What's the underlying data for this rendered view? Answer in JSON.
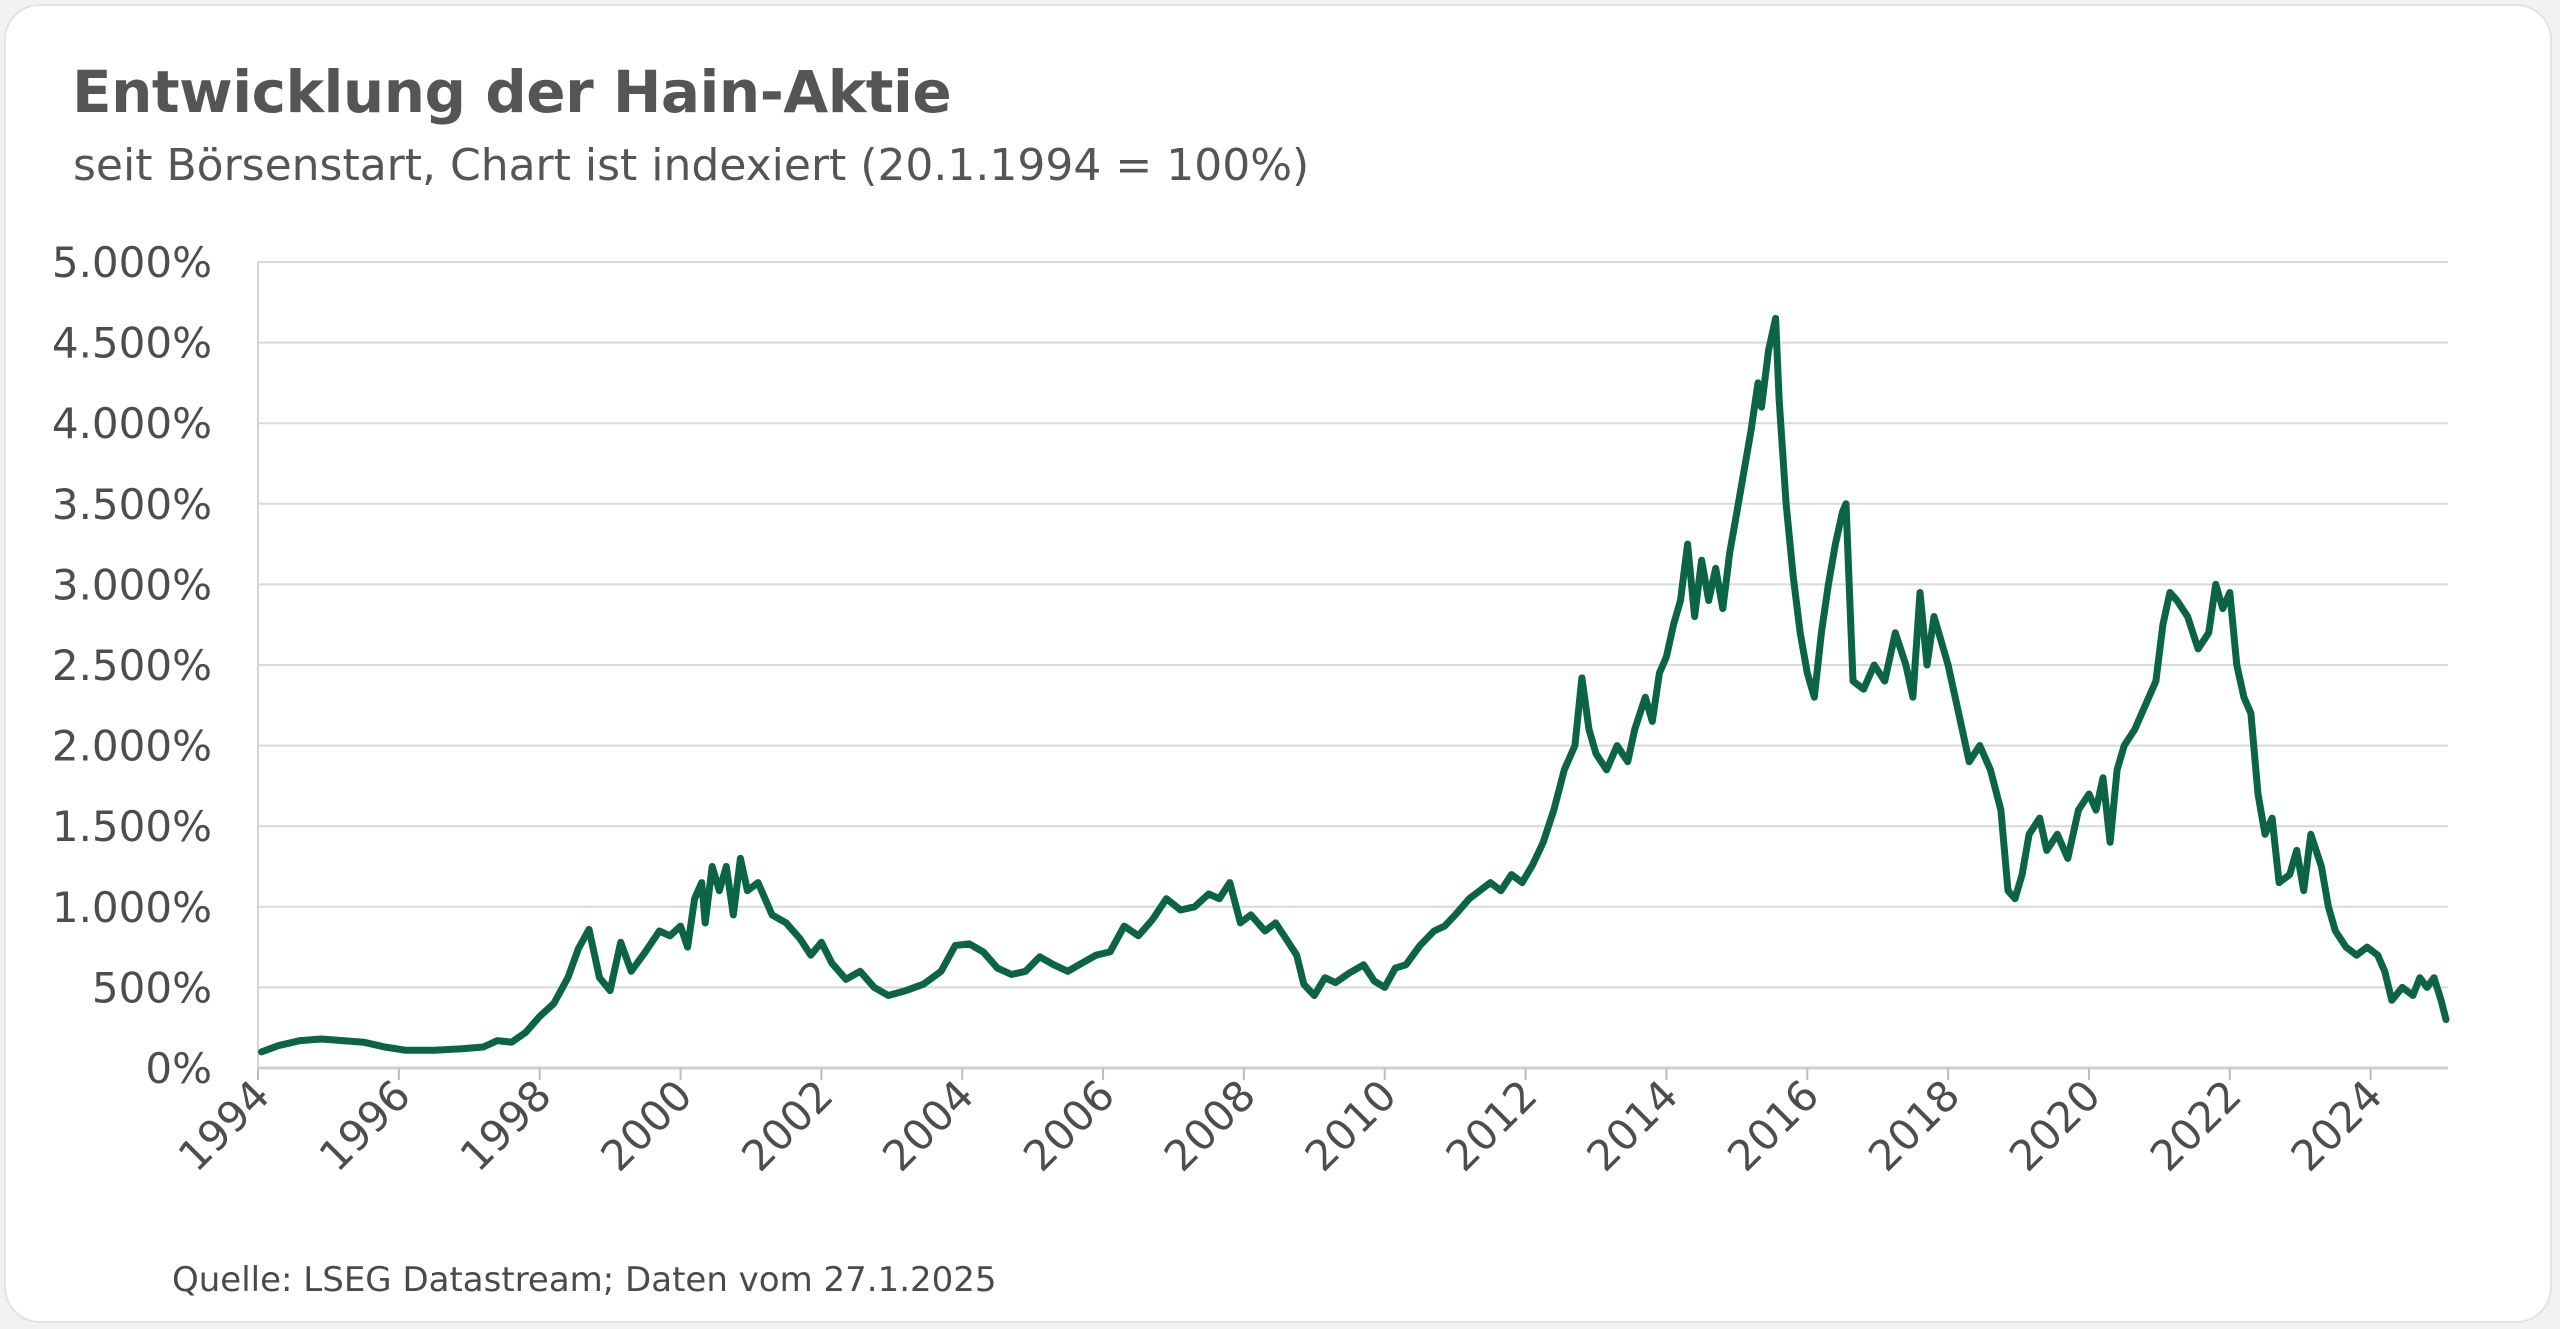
{
  "chart_data": {
    "type": "line",
    "title": "Entwicklung der Hain-Aktie",
    "subtitle": "seit Börsenstart, Chart ist indexiert (20.1.1994 = 100%)",
    "source": "Quelle: LSEG Datastream; Daten vom 27.1.2025",
    "xlabel": "",
    "ylabel": "",
    "xlim": [
      1994.0,
      2025.07
    ],
    "ylim": [
      0,
      5000
    ],
    "y_ticks": [
      0,
      500,
      1000,
      1500,
      2000,
      2500,
      3000,
      3500,
      4000,
      4500,
      5000
    ],
    "y_tick_labels": [
      "0%",
      "500%",
      "1.000%",
      "1.500%",
      "2.000%",
      "2.500%",
      "3.000%",
      "3.500%",
      "4.000%",
      "4.500%",
      "5.000%"
    ],
    "x_ticks": [
      1994,
      1996,
      1998,
      2000,
      2002,
      2004,
      2006,
      2008,
      2010,
      2012,
      2014,
      2016,
      2018,
      2020,
      2022,
      2024
    ],
    "x_tick_labels": [
      "1994",
      "1996",
      "1998",
      "2000",
      "2002",
      "2004",
      "2006",
      "2008",
      "2010",
      "2012",
      "2014",
      "2016",
      "2018",
      "2020",
      "2022",
      "2024"
    ],
    "grid": "horizontal",
    "line_color": "#0b6445",
    "series": [
      {
        "points": [
          [
            1994.05,
            100
          ],
          [
            1994.3,
            140
          ],
          [
            1994.6,
            170
          ],
          [
            1994.9,
            180
          ],
          [
            1995.2,
            170
          ],
          [
            1995.5,
            160
          ],
          [
            1995.8,
            130
          ],
          [
            1996.1,
            110
          ],
          [
            1996.5,
            110
          ],
          [
            1996.9,
            120
          ],
          [
            1997.2,
            130
          ],
          [
            1997.4,
            170
          ],
          [
            1997.6,
            160
          ],
          [
            1997.8,
            220
          ],
          [
            1998.0,
            320
          ],
          [
            1998.2,
            400
          ],
          [
            1998.4,
            560
          ],
          [
            1998.55,
            740
          ],
          [
            1998.7,
            860
          ],
          [
            1998.85,
            560
          ],
          [
            1999.0,
            480
          ],
          [
            1999.15,
            780
          ],
          [
            1999.3,
            600
          ],
          [
            1999.5,
            720
          ],
          [
            1999.7,
            850
          ],
          [
            1999.85,
            820
          ],
          [
            2000.0,
            880
          ],
          [
            2000.1,
            750
          ],
          [
            2000.2,
            1050
          ],
          [
            2000.3,
            1150
          ],
          [
            2000.35,
            900
          ],
          [
            2000.45,
            1250
          ],
          [
            2000.55,
            1100
          ],
          [
            2000.65,
            1250
          ],
          [
            2000.75,
            950
          ],
          [
            2000.85,
            1300
          ],
          [
            2000.95,
            1100
          ],
          [
            2001.1,
            1150
          ],
          [
            2001.3,
            950
          ],
          [
            2001.5,
            900
          ],
          [
            2001.7,
            800
          ],
          [
            2001.85,
            700
          ],
          [
            2002.0,
            780
          ],
          [
            2002.15,
            650
          ],
          [
            2002.35,
            550
          ],
          [
            2002.55,
            600
          ],
          [
            2002.75,
            500
          ],
          [
            2002.95,
            450
          ],
          [
            2003.2,
            480
          ],
          [
            2003.45,
            520
          ],
          [
            2003.7,
            600
          ],
          [
            2003.9,
            760
          ],
          [
            2004.1,
            770
          ],
          [
            2004.3,
            720
          ],
          [
            2004.5,
            620
          ],
          [
            2004.7,
            580
          ],
          [
            2004.9,
            600
          ],
          [
            2005.1,
            690
          ],
          [
            2005.3,
            640
          ],
          [
            2005.5,
            600
          ],
          [
            2005.7,
            650
          ],
          [
            2005.9,
            700
          ],
          [
            2006.1,
            720
          ],
          [
            2006.3,
            880
          ],
          [
            2006.5,
            820
          ],
          [
            2006.7,
            920
          ],
          [
            2006.9,
            1050
          ],
          [
            2007.1,
            980
          ],
          [
            2007.3,
            1000
          ],
          [
            2007.5,
            1080
          ],
          [
            2007.65,
            1050
          ],
          [
            2007.8,
            1150
          ],
          [
            2007.95,
            900
          ],
          [
            2008.1,
            950
          ],
          [
            2008.3,
            850
          ],
          [
            2008.45,
            900
          ],
          [
            2008.6,
            800
          ],
          [
            2008.75,
            700
          ],
          [
            2008.85,
            520
          ],
          [
            2009.0,
            450
          ],
          [
            2009.15,
            560
          ],
          [
            2009.3,
            530
          ],
          [
            2009.5,
            590
          ],
          [
            2009.7,
            640
          ],
          [
            2009.85,
            540
          ],
          [
            2010.0,
            500
          ],
          [
            2010.15,
            620
          ],
          [
            2010.3,
            640
          ],
          [
            2010.5,
            760
          ],
          [
            2010.7,
            850
          ],
          [
            2010.85,
            880
          ],
          [
            2011.0,
            950
          ],
          [
            2011.2,
            1050
          ],
          [
            2011.35,
            1100
          ],
          [
            2011.5,
            1150
          ],
          [
            2011.65,
            1100
          ],
          [
            2011.8,
            1200
          ],
          [
            2011.95,
            1150
          ],
          [
            2012.1,
            1260
          ],
          [
            2012.25,
            1400
          ],
          [
            2012.4,
            1600
          ],
          [
            2012.55,
            1850
          ],
          [
            2012.7,
            2000
          ],
          [
            2012.8,
            2420
          ],
          [
            2012.9,
            2100
          ],
          [
            2013.0,
            1950
          ],
          [
            2013.15,
            1850
          ],
          [
            2013.3,
            2000
          ],
          [
            2013.45,
            1900
          ],
          [
            2013.55,
            2100
          ],
          [
            2013.7,
            2300
          ],
          [
            2013.8,
            2150
          ],
          [
            2013.9,
            2450
          ],
          [
            2014.0,
            2550
          ],
          [
            2014.1,
            2750
          ],
          [
            2014.2,
            2900
          ],
          [
            2014.3,
            3250
          ],
          [
            2014.4,
            2800
          ],
          [
            2014.5,
            3150
          ],
          [
            2014.6,
            2900
          ],
          [
            2014.7,
            3100
          ],
          [
            2014.8,
            2850
          ],
          [
            2014.9,
            3200
          ],
          [
            2015.0,
            3450
          ],
          [
            2015.1,
            3700
          ],
          [
            2015.2,
            3950
          ],
          [
            2015.3,
            4250
          ],
          [
            2015.35,
            4100
          ],
          [
            2015.45,
            4450
          ],
          [
            2015.55,
            4650
          ],
          [
            2015.6,
            4150
          ],
          [
            2015.7,
            3500
          ],
          [
            2015.8,
            3050
          ],
          [
            2015.9,
            2700
          ],
          [
            2016.0,
            2450
          ],
          [
            2016.1,
            2300
          ],
          [
            2016.2,
            2700
          ],
          [
            2016.3,
            3000
          ],
          [
            2016.4,
            3250
          ],
          [
            2016.5,
            3450
          ],
          [
            2016.55,
            3500
          ],
          [
            2016.65,
            2400
          ],
          [
            2016.8,
            2350
          ],
          [
            2016.95,
            2500
          ],
          [
            2017.1,
            2400
          ],
          [
            2017.25,
            2700
          ],
          [
            2017.4,
            2500
          ],
          [
            2017.5,
            2300
          ],
          [
            2017.6,
            2950
          ],
          [
            2017.7,
            2500
          ],
          [
            2017.8,
            2800
          ],
          [
            2017.9,
            2650
          ],
          [
            2018.0,
            2500
          ],
          [
            2018.15,
            2200
          ],
          [
            2018.3,
            1900
          ],
          [
            2018.45,
            2000
          ],
          [
            2018.6,
            1850
          ],
          [
            2018.75,
            1600
          ],
          [
            2018.85,
            1100
          ],
          [
            2018.95,
            1050
          ],
          [
            2019.05,
            1200
          ],
          [
            2019.15,
            1450
          ],
          [
            2019.3,
            1550
          ],
          [
            2019.4,
            1350
          ],
          [
            2019.55,
            1450
          ],
          [
            2019.7,
            1300
          ],
          [
            2019.85,
            1600
          ],
          [
            2020.0,
            1700
          ],
          [
            2020.1,
            1600
          ],
          [
            2020.2,
            1800
          ],
          [
            2020.3,
            1400
          ],
          [
            2020.4,
            1850
          ],
          [
            2020.5,
            2000
          ],
          [
            2020.65,
            2100
          ],
          [
            2020.8,
            2250
          ],
          [
            2020.95,
            2400
          ],
          [
            2021.05,
            2750
          ],
          [
            2021.15,
            2950
          ],
          [
            2021.25,
            2900
          ],
          [
            2021.4,
            2800
          ],
          [
            2021.55,
            2600
          ],
          [
            2021.7,
            2700
          ],
          [
            2021.8,
            3000
          ],
          [
            2021.9,
            2850
          ],
          [
            2022.0,
            2950
          ],
          [
            2022.1,
            2500
          ],
          [
            2022.2,
            2300
          ],
          [
            2022.3,
            2200
          ],
          [
            2022.4,
            1700
          ],
          [
            2022.5,
            1450
          ],
          [
            2022.6,
            1550
          ],
          [
            2022.7,
            1150
          ],
          [
            2022.85,
            1200
          ],
          [
            2022.95,
            1350
          ],
          [
            2023.05,
            1100
          ],
          [
            2023.15,
            1450
          ],
          [
            2023.3,
            1250
          ],
          [
            2023.4,
            1000
          ],
          [
            2023.5,
            850
          ],
          [
            2023.65,
            750
          ],
          [
            2023.8,
            700
          ],
          [
            2023.95,
            750
          ],
          [
            2024.1,
            700
          ],
          [
            2024.2,
            600
          ],
          [
            2024.3,
            420
          ],
          [
            2024.45,
            500
          ],
          [
            2024.6,
            450
          ],
          [
            2024.7,
            560
          ],
          [
            2024.8,
            500
          ],
          [
            2024.9,
            560
          ],
          [
            2025.0,
            420
          ],
          [
            2025.07,
            300
          ]
        ]
      }
    ]
  }
}
